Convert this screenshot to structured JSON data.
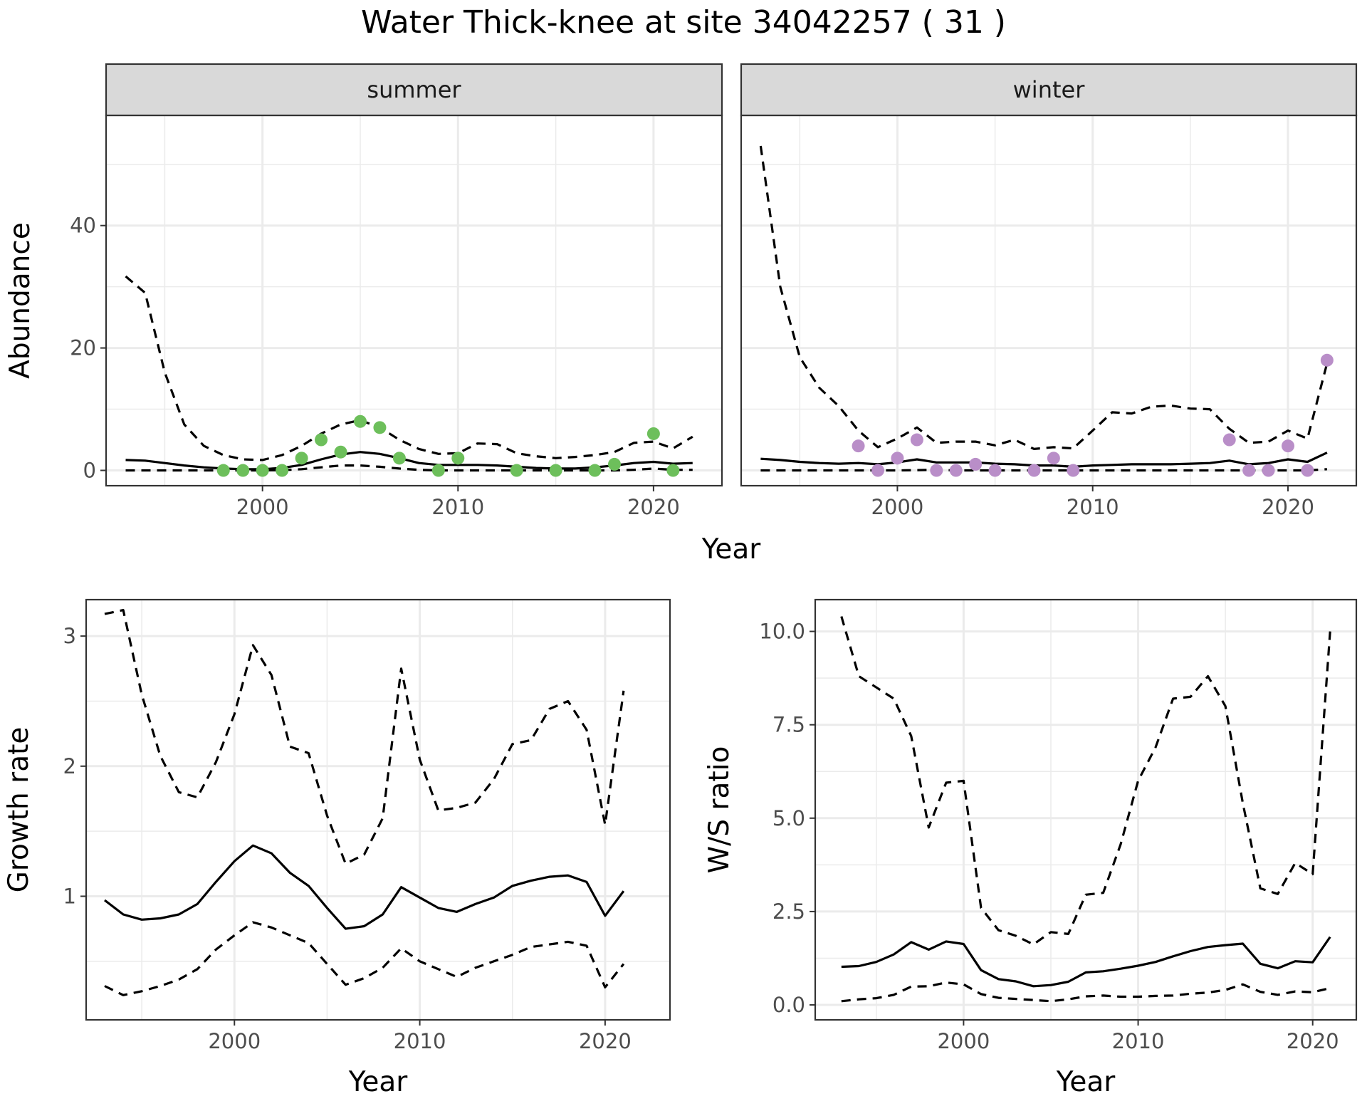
{
  "figure": {
    "title": "Water Thick-knee at site 34042257 ( 31 )"
  },
  "colors": {
    "summer_points": "#6dbf5b",
    "winter_points": "#b98ec8",
    "line": "#000000",
    "grid": "#ebebeb",
    "strip": "#d9d9d9"
  },
  "chart_data": [
    {
      "type": "line",
      "panel": "abundance-summer",
      "strip_label": "summer",
      "xlabel": "Year",
      "ylabel": "Abundance",
      "xlim": [
        1992,
        2023.5
      ],
      "ylim": [
        -2.5,
        58
      ],
      "x_ticks": [
        2000,
        2010,
        2020
      ],
      "y_ticks": [
        0,
        20,
        40
      ],
      "grid": true,
      "series": [
        {
          "style": "solid",
          "x": [
            1993,
            1994,
            1995,
            1996,
            1997,
            1998,
            1999,
            2000,
            2001,
            2002,
            2003,
            2004,
            2005,
            2006,
            2007,
            2008,
            2009,
            2010,
            2011,
            2012,
            2013,
            2014,
            2015,
            2016,
            2017,
            2018,
            2019,
            2020,
            2021,
            2022
          ],
          "y": [
            1.7,
            1.6,
            1.2,
            0.8,
            0.5,
            0.3,
            0.2,
            0.2,
            0.4,
            0.9,
            1.8,
            2.6,
            3.0,
            2.7,
            2.0,
            1.2,
            0.9,
            0.9,
            0.9,
            0.8,
            0.6,
            0.4,
            0.3,
            0.3,
            0.5,
            0.8,
            1.2,
            1.4,
            1.1,
            1.2
          ]
        },
        {
          "style": "dashed",
          "x": [
            1993,
            1994,
            1995,
            1996,
            1997,
            1998,
            1999,
            2000,
            2001,
            2002,
            2003,
            2004,
            2005,
            2006,
            2007,
            2008,
            2009,
            2010,
            2011,
            2012,
            2013,
            2014,
            2015,
            2016,
            2017,
            2018,
            2019,
            2020,
            2021,
            2022
          ],
          "y": [
            31.7,
            29,
            16,
            7.5,
            4,
            2.5,
            1.8,
            1.7,
            2.5,
            4,
            6,
            7.5,
            8.2,
            7,
            5,
            3.5,
            2.7,
            2.8,
            4.4,
            4.3,
            2.8,
            2.3,
            2,
            2.2,
            2.5,
            3,
            4.5,
            4.7,
            3.6,
            5.5
          ]
        },
        {
          "style": "dashed",
          "x": [
            1993,
            1994,
            1995,
            1996,
            1997,
            1998,
            1999,
            2000,
            2001,
            2002,
            2003,
            2004,
            2005,
            2006,
            2007,
            2008,
            2009,
            2010,
            2011,
            2012,
            2013,
            2014,
            2015,
            2016,
            2017,
            2018,
            2019,
            2020,
            2021,
            2022
          ],
          "y": [
            0,
            0,
            0,
            0,
            0,
            0,
            0,
            0,
            0.05,
            0.2,
            0.5,
            0.8,
            0.8,
            0.6,
            0.3,
            0.1,
            0,
            0,
            0,
            0,
            0,
            0,
            0,
            0,
            0,
            0,
            0.1,
            0.3,
            0.1,
            0.1
          ]
        }
      ],
      "points": {
        "x": [
          1998,
          1999,
          2000,
          2001,
          2002,
          2003,
          2004,
          2005,
          2006,
          2007,
          2009,
          2010,
          2013,
          2015,
          2017,
          2018,
          2020,
          2021
        ],
        "y": [
          0,
          0,
          0,
          0,
          2,
          5,
          3,
          8,
          7,
          2,
          0,
          2,
          0,
          0,
          0,
          1,
          6,
          0
        ]
      }
    },
    {
      "type": "line",
      "panel": "abundance-winter",
      "strip_label": "winter",
      "xlabel": "Year",
      "ylabel": "",
      "xlim": [
        1992,
        2023.5
      ],
      "ylim": [
        -2.5,
        58
      ],
      "x_ticks": [
        2000,
        2010,
        2020
      ],
      "y_ticks": [
        0,
        20,
        40
      ],
      "grid": true,
      "series": [
        {
          "style": "solid",
          "x": [
            1993,
            1994,
            1995,
            1996,
            1997,
            1998,
            1999,
            2000,
            2001,
            2002,
            2003,
            2004,
            2005,
            2006,
            2007,
            2008,
            2009,
            2010,
            2011,
            2012,
            2013,
            2014,
            2015,
            2016,
            2017,
            2018,
            2019,
            2020,
            2021,
            2022
          ],
          "y": [
            1.9,
            1.7,
            1.4,
            1.2,
            1.1,
            1.2,
            1.0,
            1.3,
            1.8,
            1.3,
            1.3,
            1.3,
            1.1,
            1.0,
            0.8,
            0.8,
            0.6,
            0.8,
            0.9,
            1.0,
            1.0,
            1.0,
            1.1,
            1.2,
            1.6,
            1.0,
            1.2,
            1.8,
            1.4,
            2.9
          ]
        },
        {
          "style": "dashed",
          "x": [
            1993,
            1994,
            1995,
            1996,
            1997,
            1998,
            1999,
            2000,
            2001,
            2002,
            2003,
            2004,
            2005,
            2006,
            2007,
            2008,
            2009,
            2010,
            2011,
            2012,
            2013,
            2014,
            2015,
            2016,
            2017,
            2018,
            2019,
            2020,
            2021,
            2022
          ],
          "y": [
            53,
            30,
            18.5,
            13.5,
            10.5,
            6.5,
            3.8,
            5.2,
            7,
            4.5,
            4.7,
            4.7,
            4.1,
            5,
            3.5,
            3.8,
            3.6,
            6.5,
            9.5,
            9.3,
            10.4,
            10.6,
            10.1,
            10,
            6.8,
            4.5,
            4.7,
            6.5,
            5.2,
            17.5
          ]
        },
        {
          "style": "dashed",
          "x": [
            1993,
            1994,
            1995,
            1996,
            1997,
            1998,
            1999,
            2000,
            2001,
            2002,
            2003,
            2004,
            2005,
            2006,
            2007,
            2008,
            2009,
            2010,
            2011,
            2012,
            2013,
            2014,
            2015,
            2016,
            2017,
            2018,
            2019,
            2020,
            2021,
            2022
          ],
          "y": [
            0,
            0,
            0,
            0,
            0,
            0,
            0,
            0,
            0.05,
            0.1,
            0,
            0,
            0,
            0,
            0,
            0,
            0,
            0,
            0,
            0,
            0,
            0,
            0,
            0,
            0,
            0,
            0,
            0,
            0,
            0.2
          ]
        }
      ],
      "points": {
        "x": [
          1998,
          1999,
          2000,
          2001,
          2002,
          2003,
          2004,
          2005,
          2007,
          2008,
          2009,
          2017,
          2018,
          2019,
          2020,
          2021,
          2022
        ],
        "y": [
          4,
          0,
          2,
          5,
          0,
          0,
          1,
          0,
          0,
          2,
          0,
          5,
          0,
          0,
          4,
          0,
          18
        ]
      }
    },
    {
      "type": "line",
      "panel": "growth-rate",
      "xlabel": "Year",
      "ylabel": "Growth rate",
      "xlim": [
        1992,
        2023.5
      ],
      "ylim": [
        0.05,
        3.28
      ],
      "x_ticks": [
        2000,
        2010,
        2020
      ],
      "y_ticks": [
        1,
        2,
        3
      ],
      "grid": true,
      "series": [
        {
          "style": "solid",
          "x": [
            1993,
            1994,
            1995,
            1996,
            1997,
            1998,
            1999,
            2000,
            2001,
            2002,
            2003,
            2004,
            2005,
            2006,
            2007,
            2008,
            2009,
            2010,
            2011,
            2012,
            2013,
            2014,
            2015,
            2016,
            2017,
            2018,
            2019,
            2020,
            2021
          ],
          "y": [
            0.97,
            0.86,
            0.82,
            0.83,
            0.86,
            0.94,
            1.11,
            1.27,
            1.39,
            1.33,
            1.18,
            1.08,
            0.91,
            0.75,
            0.77,
            0.86,
            1.07,
            0.99,
            0.91,
            0.88,
            0.94,
            0.99,
            1.08,
            1.12,
            1.15,
            1.16,
            1.11,
            0.85,
            1.04
          ]
        },
        {
          "style": "dashed",
          "x": [
            1993,
            1994,
            1995,
            1996,
            1997,
            1998,
            1999,
            2000,
            2001,
            2002,
            2003,
            2004,
            2005,
            2006,
            2007,
            2008,
            2009,
            2010,
            2011,
            2012,
            2013,
            2014,
            2015,
            2016,
            2017,
            2018,
            2019,
            2020,
            2021
          ],
          "y": [
            3.17,
            3.2,
            2.55,
            2.08,
            1.8,
            1.76,
            2.03,
            2.4,
            2.93,
            2.7,
            2.15,
            2.1,
            1.62,
            1.25,
            1.32,
            1.6,
            2.75,
            2.05,
            1.66,
            1.68,
            1.72,
            1.9,
            2.17,
            2.2,
            2.44,
            2.5,
            2.28,
            1.55,
            2.58
          ]
        },
        {
          "style": "dashed",
          "x": [
            1993,
            1994,
            1995,
            1996,
            1997,
            1998,
            1999,
            2000,
            2001,
            2002,
            2003,
            2004,
            2005,
            2006,
            2007,
            2008,
            2009,
            2010,
            2011,
            2012,
            2013,
            2014,
            2015,
            2016,
            2017,
            2018,
            2019,
            2020,
            2021
          ],
          "y": [
            0.31,
            0.24,
            0.27,
            0.31,
            0.36,
            0.44,
            0.59,
            0.7,
            0.8,
            0.76,
            0.7,
            0.64,
            0.48,
            0.32,
            0.37,
            0.45,
            0.6,
            0.5,
            0.44,
            0.38,
            0.45,
            0.5,
            0.55,
            0.61,
            0.63,
            0.65,
            0.62,
            0.3,
            0.48
          ]
        }
      ]
    },
    {
      "type": "line",
      "panel": "ws-ratio",
      "xlabel": "Year",
      "ylabel": "W/S ratio",
      "xlim": [
        1991.5,
        2022.5
      ],
      "ylim": [
        -0.4,
        10.85
      ],
      "x_ticks": [
        2000,
        2010,
        2020
      ],
      "y_ticks": [
        0.0,
        2.5,
        5.0,
        7.5,
        10.0
      ],
      "y_tick_labels": [
        "0.0",
        "2.5",
        "5.0",
        "7.5",
        "10.0"
      ],
      "grid": true,
      "series": [
        {
          "style": "solid",
          "x": [
            1993,
            1994,
            1995,
            1996,
            1997,
            1998,
            1999,
            2000,
            2001,
            2002,
            2003,
            2004,
            2005,
            2006,
            2007,
            2008,
            2009,
            2010,
            2011,
            2012,
            2013,
            2014,
            2015,
            2016,
            2017,
            2018,
            2019,
            2020,
            2021
          ],
          "y": [
            1.02,
            1.04,
            1.15,
            1.35,
            1.68,
            1.48,
            1.7,
            1.63,
            0.93,
            0.69,
            0.63,
            0.5,
            0.53,
            0.62,
            0.87,
            0.9,
            0.97,
            1.05,
            1.15,
            1.3,
            1.44,
            1.55,
            1.6,
            1.64,
            1.1,
            0.98,
            1.17,
            1.14,
            1.82
          ]
        },
        {
          "style": "dashed",
          "x": [
            1993,
            1994,
            1995,
            1996,
            1997,
            1998,
            1999,
            2000,
            2001,
            2002,
            2003,
            2004,
            2005,
            2006,
            2007,
            2008,
            2009,
            2010,
            2011,
            2012,
            2013,
            2014,
            2015,
            2016,
            2017,
            2018,
            2019,
            2020,
            2021
          ],
          "y": [
            10.4,
            8.8,
            8.5,
            8.2,
            7.2,
            4.75,
            5.95,
            6,
            2.6,
            2,
            1.85,
            1.62,
            1.95,
            1.9,
            2.95,
            3,
            4.3,
            6,
            6.9,
            8.2,
            8.25,
            8.8,
            8,
            5.4,
            3.12,
            2.97,
            3.8,
            3.5,
            10.0
          ]
        },
        {
          "style": "dashed",
          "x": [
            1993,
            1994,
            1995,
            1996,
            1997,
            1998,
            1999,
            2000,
            2001,
            2002,
            2003,
            2004,
            2005,
            2006,
            2007,
            2008,
            2009,
            2010,
            2011,
            2012,
            2013,
            2014,
            2015,
            2016,
            2017,
            2018,
            2019,
            2020,
            2021
          ],
          "y": [
            0.1,
            0.15,
            0.18,
            0.27,
            0.49,
            0.5,
            0.6,
            0.55,
            0.29,
            0.19,
            0.16,
            0.13,
            0.1,
            0.15,
            0.23,
            0.25,
            0.22,
            0.22,
            0.24,
            0.25,
            0.3,
            0.33,
            0.4,
            0.55,
            0.35,
            0.27,
            0.36,
            0.34,
            0.45
          ]
        }
      ]
    }
  ]
}
